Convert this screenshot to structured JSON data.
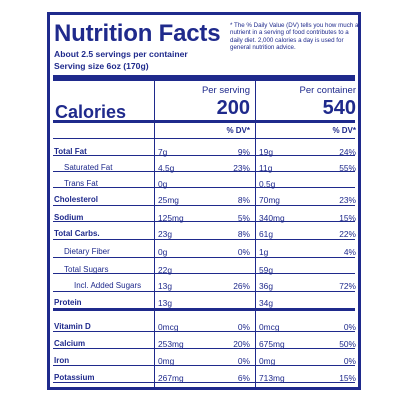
{
  "title": "Nutrition Facts",
  "footnote": "* The % Daily Value (DV) tells you how much a nutrient in a serving of food contributes to a daily diet. 2,000 calories a day is used for general nutrition advice.",
  "servings": "About 2.5 servings per container",
  "serving_size": "Serving size 6oz (170g)",
  "calories_label": "Calories",
  "per_serving_label": "Per serving",
  "per_container_label": "Per container",
  "calories_serving": "200",
  "calories_container": "540",
  "dv_label": "% DV*",
  "rows": [
    {
      "name": "Total Fat",
      "bold": true,
      "indent": 0,
      "s_amt": "7g",
      "s_dv": "9%",
      "c_amt": "19g",
      "c_dv": "24%"
    },
    {
      "name": "Saturated Fat",
      "bold": false,
      "indent": 1,
      "s_amt": "4.5g",
      "s_dv": "23%",
      "c_amt": "11g",
      "c_dv": "55%"
    },
    {
      "name": "Trans Fat",
      "bold": false,
      "indent": 1,
      "s_amt": "0g",
      "s_dv": "",
      "c_amt": "0.5g",
      "c_dv": ""
    },
    {
      "name": "Cholesterol",
      "bold": true,
      "indent": 0,
      "s_amt": "25mg",
      "s_dv": "8%",
      "c_amt": "70mg",
      "c_dv": "23%"
    },
    {
      "name": "Sodium",
      "bold": true,
      "indent": 0,
      "s_amt": "125mg",
      "s_dv": "5%",
      "c_amt": "340mg",
      "c_dv": "15%"
    },
    {
      "name": "Total Carbs.",
      "bold": true,
      "indent": 0,
      "s_amt": "23g",
      "s_dv": "8%",
      "c_amt": "61g",
      "c_dv": "22%"
    },
    {
      "name": "Dietary Fiber",
      "bold": false,
      "indent": 1,
      "s_amt": "0g",
      "s_dv": "0%",
      "c_amt": "1g",
      "c_dv": "4%"
    },
    {
      "name": "Total Sugars",
      "bold": false,
      "indent": 1,
      "s_amt": "22g",
      "s_dv": "",
      "c_amt": "59g",
      "c_dv": ""
    },
    {
      "name": "Incl. Added Sugars",
      "bold": false,
      "indent": 2,
      "s_amt": "13g",
      "s_dv": "26%",
      "c_amt": "36g",
      "c_dv": "72%"
    },
    {
      "name": "Protein",
      "bold": true,
      "indent": 0,
      "s_amt": "13g",
      "s_dv": "",
      "c_amt": "34g",
      "c_dv": ""
    },
    {
      "name": "Vitamin D",
      "bold": true,
      "indent": 0,
      "s_amt": "0mcg",
      "s_dv": "0%",
      "c_amt": "0mcg",
      "c_dv": "0%"
    },
    {
      "name": "Calcium",
      "bold": true,
      "indent": 0,
      "s_amt": "253mg",
      "s_dv": "20%",
      "c_amt": "675mg",
      "c_dv": "50%"
    },
    {
      "name": "Iron",
      "bold": true,
      "indent": 0,
      "s_amt": "0mg",
      "s_dv": "0%",
      "c_amt": "0mg",
      "c_dv": "0%"
    },
    {
      "name": "Potassium",
      "bold": true,
      "indent": 0,
      "s_amt": "267mg",
      "s_dv": "6%",
      "c_amt": "713mg",
      "c_dv": "15%"
    }
  ]
}
